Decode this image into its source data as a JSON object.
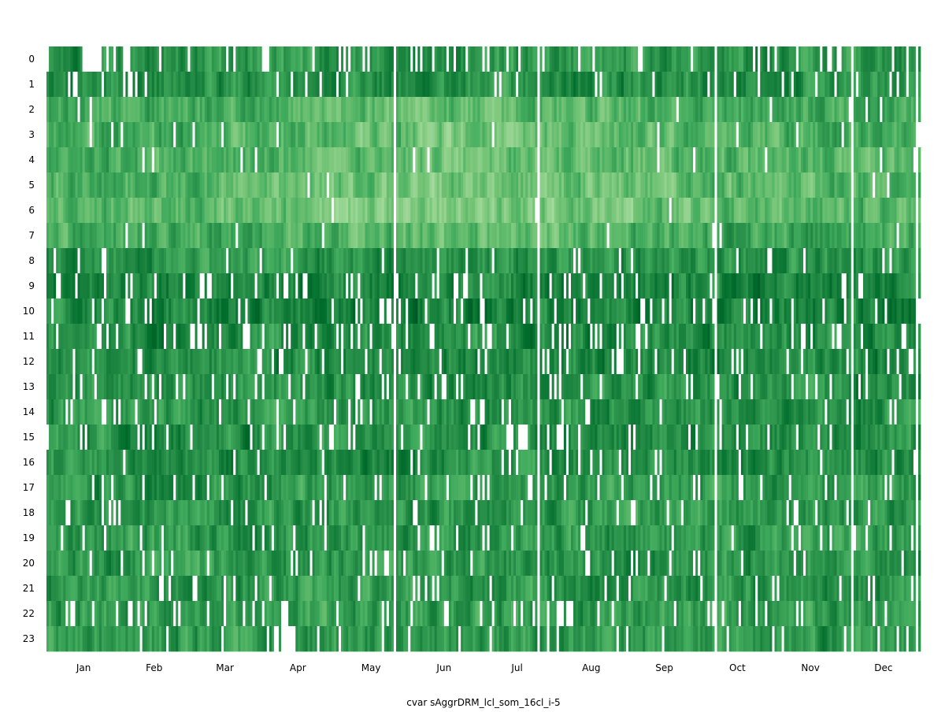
{
  "chart_data": {
    "type": "heatmap",
    "title": "",
    "xlabel": "cvar sAggrDRM_lcl_som_16cl_i-5",
    "ylabel": "",
    "x_tick_labels": [
      "Jan",
      "Feb",
      "Mar",
      "Apr",
      "May",
      "Jun",
      "Jul",
      "Aug",
      "Sep",
      "Oct",
      "Nov",
      "Dec"
    ],
    "y_tick_labels": [
      "0",
      "1",
      "2",
      "3",
      "4",
      "5",
      "6",
      "7",
      "8",
      "9",
      "10",
      "11",
      "12",
      "13",
      "14",
      "15",
      "16",
      "17",
      "18",
      "19",
      "20",
      "21",
      "22",
      "23"
    ],
    "n_days": 365,
    "n_hours": 24,
    "value_range": [
      0,
      1
    ],
    "colormap": "Greens",
    "color_stops": [
      "#c7e9c0",
      "#a1d99b",
      "#74c476",
      "#41ab5d",
      "#238b45",
      "#006d2c",
      "#00441b"
    ],
    "missing_color": "#ffffff",
    "grid": false,
    "legend": false,
    "hour_profile": [
      0.62,
      0.64,
      0.52,
      0.48,
      0.48,
      0.45,
      0.42,
      0.52,
      0.62,
      0.7,
      0.7,
      0.66,
      0.66,
      0.64,
      0.62,
      0.64,
      0.66,
      0.6,
      0.6,
      0.6,
      0.6,
      0.6,
      0.58,
      0.6
    ],
    "hour_missing_rate": [
      0.14,
      0.1,
      0.02,
      0.03,
      0.03,
      0.01,
      0.02,
      0.03,
      0.05,
      0.12,
      0.12,
      0.17,
      0.12,
      0.1,
      0.12,
      0.12,
      0.1,
      0.1,
      0.1,
      0.1,
      0.1,
      0.1,
      0.1,
      0.06
    ],
    "random_seed": 20240517
  }
}
